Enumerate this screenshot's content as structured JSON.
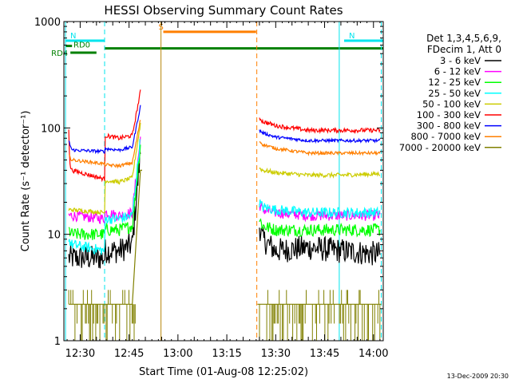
{
  "chart_data": {
    "type": "line",
    "title": "HESSI Observing Summary Count Rates",
    "xlabel": "Start Time (01-Aug-08 12:25:02)",
    "ylabel": "Count Rate (s⁻¹ detector⁻¹)",
    "x_unit": "minutes",
    "xlim": [
      1465,
      1563
    ],
    "ylim": [
      1,
      1000
    ],
    "yscale": "log",
    "x_ticks": [
      {
        "v": 1470,
        "label": "12:30"
      },
      {
        "v": 1485,
        "label": "12:45"
      },
      {
        "v": 1500,
        "label": "13:00"
      },
      {
        "v": 1515,
        "label": "13:15"
      },
      {
        "v": 1530,
        "label": "13:30"
      },
      {
        "v": 1545,
        "label": "13:45"
      },
      {
        "v": 1560,
        "label": "14:00"
      }
    ],
    "y_ticks": [
      {
        "v": 1,
        "label": "1"
      },
      {
        "v": 10,
        "label": "10"
      },
      {
        "v": 100,
        "label": "100"
      },
      {
        "v": 1000,
        "label": "1000"
      }
    ],
    "legend_header": [
      "Det 1,3,4,5,6,9,",
      "FDecim 1, Att 0"
    ],
    "legend_position": "right",
    "footer_date": "13-Dec-2009 20:30",
    "flags": [
      {
        "label": "N",
        "color": "#00e5ee",
        "x0": 1465.5,
        "x1": 1477.5,
        "y": 660
      },
      {
        "label": "N",
        "color": "#00e5ee",
        "x0": 1551,
        "x1": 1563,
        "y": 660
      },
      {
        "label": "S",
        "color": "#ff7f00",
        "x0": 1495.5,
        "x1": 1524,
        "y": 800
      },
      {
        "label": "RD0",
        "color": "#008000",
        "x0": 1465.5,
        "x1": 1467.5,
        "y": 590
      },
      {
        "label": "RD4",
        "color": "#008000",
        "x0": 1467,
        "x1": 1475,
        "y": 510
      },
      {
        "label": "",
        "color": "#008000",
        "x0": 1477.5,
        "x1": 1563,
        "y": 560
      }
    ],
    "vlines": [
      {
        "x": 1465.5,
        "color": "#00e5ee",
        "dash": false
      },
      {
        "x": 1477.5,
        "color": "#00e5ee",
        "dash": true
      },
      {
        "x": 1494.8,
        "color": "#b8860b",
        "dash": false
      },
      {
        "x": 1524.2,
        "color": "#ff7f00",
        "dash": true
      },
      {
        "x": 1549.5,
        "color": "#00e5ee",
        "dash": false
      },
      {
        "x": 1562.4,
        "color": "#00e5ee",
        "dash": true
      }
    ],
    "series": [
      {
        "name": "3 - 6 keV",
        "color": "#000000",
        "noise": 0.12,
        "segments": [
          {
            "x": [
              1466.5,
              1467.5,
              1477.5,
              1477.6,
              1482,
              1486,
              1488.5
            ],
            "y": [
              6,
              6,
              6,
              7,
              7,
              8,
              60
            ]
          },
          {
            "x": [
              1525,
              1526,
              1530,
              1540,
              1550,
              1562
            ],
            "y": [
              12,
              9,
              7,
              7.5,
              7,
              6.5
            ]
          }
        ]
      },
      {
        "name": "6 - 12 keV",
        "color": "#ff00ff",
        "noise": 0.05,
        "segments": [
          {
            "x": [
              1466.5,
              1467.5,
              1477.5,
              1477.6,
              1482,
              1486,
              1488.5
            ],
            "y": [
              15,
              15,
              14,
              16,
              15,
              16,
              80
            ]
          },
          {
            "x": [
              1525,
              1526,
              1530,
              1540,
              1550,
              1562
            ],
            "y": [
              19,
              17,
              16,
              15,
              15,
              15
            ]
          }
        ]
      },
      {
        "name": "12 - 25 keV",
        "color": "#00ff00",
        "noise": 0.06,
        "segments": [
          {
            "x": [
              1466.5,
              1467.5,
              1477.5,
              1477.6,
              1482,
              1486,
              1488.5
            ],
            "y": [
              11,
              10,
              10,
              11,
              11,
              12,
              70
            ]
          },
          {
            "x": [
              1525,
              1526,
              1530,
              1540,
              1550,
              1562
            ],
            "y": [
              14,
              12,
              11,
              11,
              11,
              11
            ]
          }
        ]
      },
      {
        "name": "25 - 50 keV",
        "color": "#00ffff",
        "noise": 0.05,
        "segments": [
          {
            "x": [
              1466.5,
              1467.5,
              1477.5,
              1477.6,
              1482,
              1486,
              1488.5
            ],
            "y": [
              9,
              8,
              7,
              14,
              14,
              15,
              80
            ]
          },
          {
            "x": [
              1525,
              1526,
              1530,
              1540,
              1550,
              1562
            ],
            "y": [
              20,
              18,
              17,
              16,
              16,
              16
            ]
          }
        ]
      },
      {
        "name": "50 - 100 keV",
        "color": "#cccc00",
        "noise": 0.02,
        "segments": [
          {
            "x": [
              1466.5,
              1467.5,
              1477.5,
              1477.6,
              1482,
              1486,
              1488.5
            ],
            "y": [
              17,
              17,
              16,
              32,
              31,
              34,
              110
            ]
          },
          {
            "x": [
              1525,
              1526,
              1530,
              1540,
              1550,
              1562
            ],
            "y": [
              42,
              40,
              38,
              36,
              36,
              37
            ]
          }
        ]
      },
      {
        "name": "100 - 300 keV",
        "color": "#ff0000",
        "noise": 0.02,
        "segments": [
          {
            "x": [
              1466.5,
              1466.8,
              1467.5,
              1477.5,
              1477.6,
              1482,
              1486,
              1488.5
            ],
            "y": [
              100,
              45,
              40,
              33,
              85,
              80,
              85,
              220
            ]
          },
          {
            "x": [
              1525,
              1526,
              1530,
              1540,
              1550,
              1562
            ],
            "y": [
              125,
              115,
              105,
              95,
              95,
              95
            ]
          }
        ]
      },
      {
        "name": "300 - 800 keV",
        "color": "#0000ff",
        "noise": 0.015,
        "segments": [
          {
            "x": [
              1466.5,
              1467.5,
              1477.5,
              1477.6,
              1482,
              1486,
              1488.5
            ],
            "y": [
              75,
              62,
              60,
              64,
              62,
              66,
              160
            ]
          },
          {
            "x": [
              1525,
              1526,
              1530,
              1540,
              1550,
              1562
            ],
            "y": [
              95,
              90,
              82,
              76,
              76,
              76
            ]
          }
        ]
      },
      {
        "name": "800 - 7000 keV",
        "color": "#ff7f00",
        "noise": 0.015,
        "segments": [
          {
            "x": [
              1466.5,
              1467.5,
              1477.5,
              1477.6,
              1482,
              1486,
              1488.5
            ],
            "y": [
              55,
              50,
              46,
              45,
              44,
              47,
              120
            ]
          },
          {
            "x": [
              1525,
              1526,
              1530,
              1540,
              1550,
              1562
            ],
            "y": [
              75,
              70,
              64,
              58,
              58,
              58
            ]
          }
        ]
      },
      {
        "name": "7000 - 20000 keV",
        "color": "#808000",
        "noise": 0,
        "segments": [
          {
            "x": [
              1466.5,
              1477.5,
              1486,
              1488.5,
              1489
            ],
            "y": [
              2.2,
              2.2,
              2.2,
              40,
              40
            ]
          },
          {
            "x": [
              1524.4,
              1562.4
            ],
            "y": [
              2.2,
              2.2
            ]
          }
        ]
      }
    ]
  }
}
